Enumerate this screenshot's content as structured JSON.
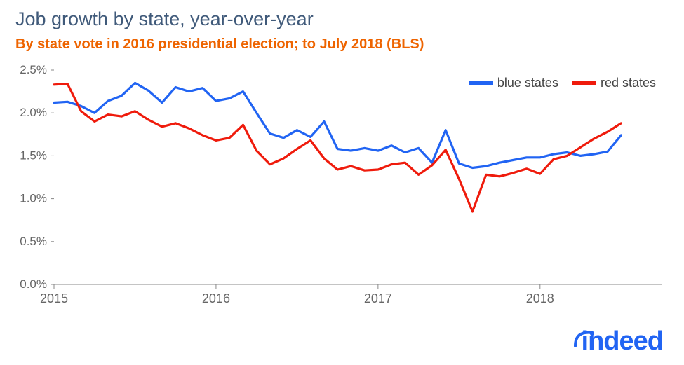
{
  "title": "Job growth by state, year-over-year",
  "subtitle": "By state vote in 2016 presidential election; to July 2018 (BLS)",
  "title_color": "#405a7a",
  "subtitle_color": "#ee6400",
  "title_fontsize": 27,
  "subtitle_fontsize": 20,
  "background_color": "#ffffff",
  "logo_text": "indeed",
  "logo_color": "#2164f3",
  "chart": {
    "type": "line",
    "x_domain": [
      2015,
      2018.75
    ],
    "y_domain": [
      0.0,
      2.5
    ],
    "y_ticks": [
      0.0,
      0.5,
      1.0,
      1.5,
      2.0,
      2.5
    ],
    "y_tick_labels": [
      "0.0%",
      "0.5%",
      "1.0%",
      "1.5%",
      "2.0%",
      "2.5%"
    ],
    "x_ticks": [
      2015,
      2016,
      2017,
      2018
    ],
    "x_tick_labels": [
      "2015",
      "2016",
      "2017",
      "2018"
    ],
    "axis_color": "#888888",
    "tick_label_color": "#666666",
    "tick_fontsize": 17,
    "line_width": 3.2,
    "legend": {
      "position": "top-right",
      "items": [
        {
          "label": "blue states",
          "color": "#2164f3"
        },
        {
          "label": "red states",
          "color": "#ef1b0c"
        }
      ]
    },
    "series": [
      {
        "name": "blue states",
        "color": "#2164f3",
        "x": [
          2015.0,
          2015.083,
          2015.167,
          2015.25,
          2015.333,
          2015.417,
          2015.5,
          2015.583,
          2015.667,
          2015.75,
          2015.833,
          2015.917,
          2016.0,
          2016.083,
          2016.167,
          2016.25,
          2016.333,
          2016.417,
          2016.5,
          2016.583,
          2016.667,
          2016.75,
          2016.833,
          2016.917,
          2017.0,
          2017.083,
          2017.167,
          2017.25,
          2017.333,
          2017.417,
          2017.5,
          2017.583,
          2017.667,
          2017.75,
          2017.833,
          2017.917,
          2018.0,
          2018.083,
          2018.167,
          2018.25,
          2018.333,
          2018.417,
          2018.5
        ],
        "y": [
          2.12,
          2.13,
          2.08,
          2.0,
          2.14,
          2.2,
          2.35,
          2.26,
          2.12,
          2.3,
          2.25,
          2.29,
          2.14,
          2.17,
          2.25,
          2.0,
          1.76,
          1.71,
          1.8,
          1.72,
          1.9,
          1.58,
          1.56,
          1.59,
          1.56,
          1.62,
          1.54,
          1.59,
          1.42,
          1.8,
          1.41,
          1.36,
          1.38,
          1.42,
          1.45,
          1.48,
          1.48,
          1.52,
          1.54,
          1.5,
          1.52,
          1.55,
          1.74
        ]
      },
      {
        "name": "red states",
        "color": "#ef1b0c",
        "x": [
          2015.0,
          2015.083,
          2015.167,
          2015.25,
          2015.333,
          2015.417,
          2015.5,
          2015.583,
          2015.667,
          2015.75,
          2015.833,
          2015.917,
          2016.0,
          2016.083,
          2016.167,
          2016.25,
          2016.333,
          2016.417,
          2016.5,
          2016.583,
          2016.667,
          2016.75,
          2016.833,
          2016.917,
          2017.0,
          2017.083,
          2017.167,
          2017.25,
          2017.333,
          2017.417,
          2017.5,
          2017.583,
          2017.667,
          2017.75,
          2017.833,
          2017.917,
          2018.0,
          2018.083,
          2018.167,
          2018.25,
          2018.333,
          2018.417,
          2018.5
        ],
        "y": [
          2.33,
          2.34,
          2.02,
          1.9,
          1.98,
          1.96,
          2.02,
          1.92,
          1.84,
          1.88,
          1.82,
          1.74,
          1.68,
          1.71,
          1.86,
          1.56,
          1.4,
          1.47,
          1.58,
          1.68,
          1.47,
          1.34,
          1.38,
          1.33,
          1.34,
          1.4,
          1.42,
          1.28,
          1.39,
          1.57,
          1.23,
          0.85,
          1.28,
          1.26,
          1.3,
          1.35,
          1.29,
          1.46,
          1.5,
          1.6,
          1.7,
          1.78,
          1.88
        ]
      }
    ]
  }
}
